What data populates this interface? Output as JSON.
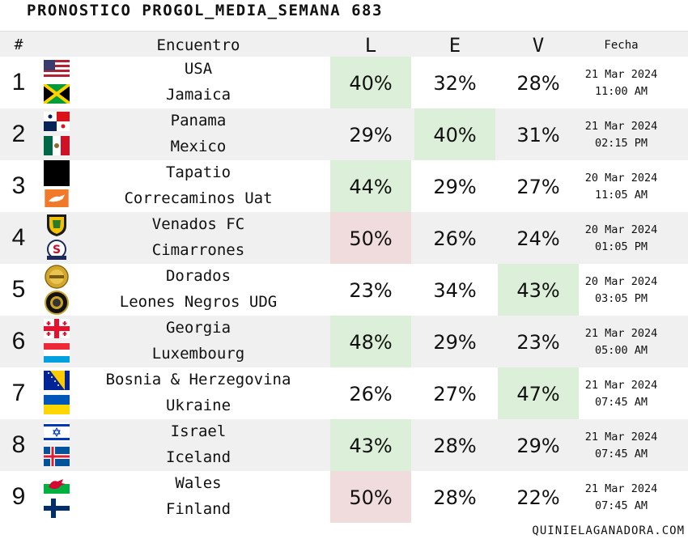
{
  "title": "PRONOSTICO PROGOL_MEDIA_SEMANA 683",
  "header": {
    "num": "#",
    "encuentro": "Encuentro",
    "l": "L",
    "e": "E",
    "v": "V",
    "fecha": "Fecha"
  },
  "colors": {
    "green": "#dcefd8",
    "red": "#f0dcdc",
    "stripe": "#f0f0f0"
  },
  "rows": [
    {
      "num": "1",
      "home": "USA",
      "away": "Jamaica",
      "l": "40%",
      "e": "32%",
      "v": "28%",
      "date": "21 Mar 2024",
      "time": "11:00 AM",
      "home_icon": "usa-flag-icon",
      "away_icon": "jamaica-flag-icon",
      "highlight": "l-green"
    },
    {
      "num": "2",
      "home": "Panama",
      "away": "Mexico",
      "l": "29%",
      "e": "40%",
      "v": "31%",
      "date": "21 Mar 2024",
      "time": "02:15 PM",
      "home_icon": "panama-flag-icon",
      "away_icon": "mexico-flag-icon",
      "highlight": "e-green"
    },
    {
      "num": "3",
      "home": "Tapatio",
      "away": "Correcaminos Uat",
      "l": "44%",
      "e": "29%",
      "v": "27%",
      "date": "20 Mar 2024",
      "time": "11:05 AM",
      "home_icon": "tapatio-logo-icon",
      "away_icon": "correcaminos-logo-icon",
      "highlight": "l-green"
    },
    {
      "num": "4",
      "home": "Venados FC",
      "away": "Cimarrones",
      "l": "50%",
      "e": "26%",
      "v": "24%",
      "date": "20 Mar 2024",
      "time": "01:05 PM",
      "home_icon": "venados-logo-icon",
      "away_icon": "cimarrones-logo-icon",
      "highlight": "l-red"
    },
    {
      "num": "5",
      "home": "Dorados",
      "away": "Leones Negros UDG",
      "l": "23%",
      "e": "34%",
      "v": "43%",
      "date": "20 Mar 2024",
      "time": "03:05 PM",
      "home_icon": "dorados-logo-icon",
      "away_icon": "leones-negros-logo-icon",
      "highlight": "v-green"
    },
    {
      "num": "6",
      "home": "Georgia",
      "away": "Luxembourg",
      "l": "48%",
      "e": "29%",
      "v": "23%",
      "date": "21 Mar 2024",
      "time": "05:00 AM",
      "home_icon": "georgia-flag-icon",
      "away_icon": "luxembourg-flag-icon",
      "highlight": "l-green"
    },
    {
      "num": "7",
      "home": "Bosnia & Herzegovina",
      "away": "Ukraine",
      "l": "26%",
      "e": "27%",
      "v": "47%",
      "date": "21 Mar 2024",
      "time": "07:45 AM",
      "home_icon": "bosnia-flag-icon",
      "away_icon": "ukraine-flag-icon",
      "highlight": "v-green"
    },
    {
      "num": "8",
      "home": "Israel",
      "away": "Iceland",
      "l": "43%",
      "e": "28%",
      "v": "29%",
      "date": "21 Mar 2024",
      "time": "07:45 AM",
      "home_icon": "israel-flag-icon",
      "away_icon": "iceland-flag-icon",
      "highlight": "l-green"
    },
    {
      "num": "9",
      "home": "Wales",
      "away": "Finland",
      "l": "50%",
      "e": "28%",
      "v": "22%",
      "date": "21 Mar 2024",
      "time": "07:45 AM",
      "home_icon": "wales-flag-icon",
      "away_icon": "finland-flag-icon",
      "highlight": "l-red"
    }
  ],
  "footer": "QUINIELAGANADORA.COM"
}
